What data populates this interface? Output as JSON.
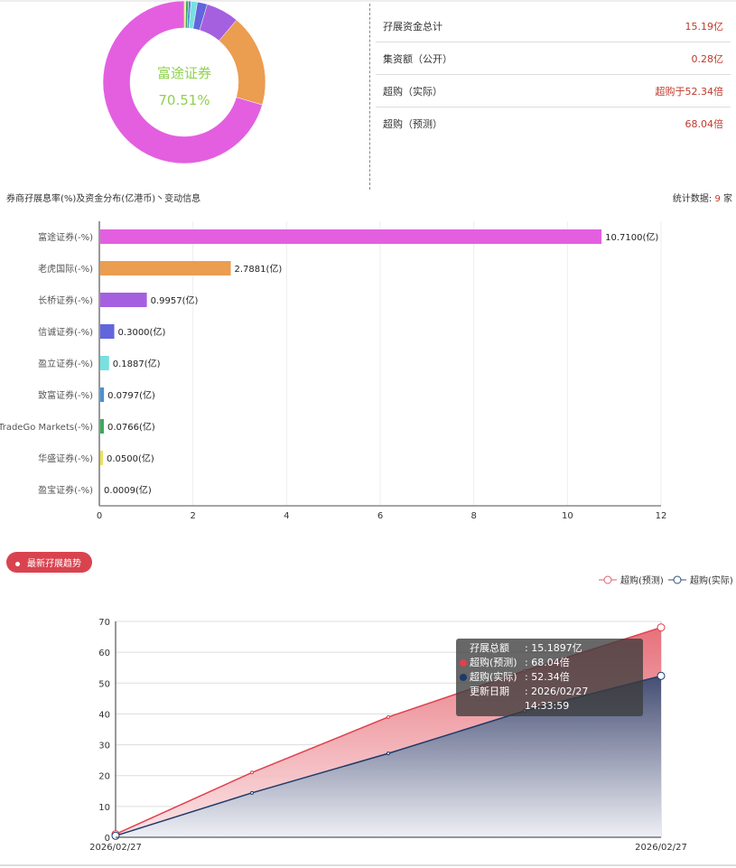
{
  "donut": {
    "center_name": "富途证券",
    "center_pct": "70.51%"
  },
  "stats": [
    {
      "label": "孖展资金总计",
      "value": "15.19亿"
    },
    {
      "label": "集资额（公开）",
      "value": "0.28亿"
    },
    {
      "label": "超购（实际）",
      "value": "超购于52.34倍"
    },
    {
      "label": "超购（预测）",
      "value": "68.04倍"
    }
  ],
  "subtitle": "券商孖展息率(%)及资金分布(亿港币)丶变动信息",
  "count": {
    "label": "统计数据: ",
    "value": "9",
    "unit": " 家"
  },
  "trend_badge": "最新孖展趋势",
  "tooltip": {
    "rows": [
      {
        "k": "孖展总额",
        "v": ": 15.1897亿",
        "color": ""
      },
      {
        "k": "超购(预测)",
        "v": ": 68.04倍",
        "color": "#e0404f"
      },
      {
        "k": "超购(实际)",
        "v": ": 52.34倍",
        "color": "#1e3a6a"
      },
      {
        "k": "更新日期",
        "v": ": 2026/02/27 14:33:59",
        "color": ""
      }
    ]
  },
  "chart_data": [
    {
      "type": "pie",
      "variant": "donut",
      "categories": [
        "富途证券",
        "老虎国际",
        "长桥证券",
        "信诚证券",
        "盈立证券",
        "致富证券",
        "TradeGo Markets",
        "华盛证券",
        "盈宝证券"
      ],
      "values": [
        10.71,
        2.7881,
        0.9957,
        0.3,
        0.1887,
        0.0797,
        0.0766,
        0.05,
        0.0009
      ],
      "colors": [
        "#e35fe0",
        "#eb9d50",
        "#a560e0",
        "#6265dc",
        "#78e0e0",
        "#4a8fd6",
        "#3aaa5c",
        "#ece060",
        "#999999"
      ]
    },
    {
      "type": "bar",
      "orientation": "horizontal",
      "categories": [
        "富途证券(-%)",
        "老虎国际(-%)",
        "长桥证券(-%)",
        "信诚证券(-%)",
        "盈立证券(-%)",
        "致富证券(-%)",
        "TradeGo Markets(-%)",
        "华盛证券(-%)",
        "盈宝证券(-%)"
      ],
      "values": [
        10.71,
        2.7881,
        0.9957,
        0.3,
        0.1887,
        0.0797,
        0.0766,
        0.05,
        0.0009
      ],
      "data_labels": [
        "10.7100(亿)",
        "2.7881(亿)",
        "0.9957(亿)",
        "0.3000(亿)",
        "0.1887(亿)",
        "0.0797(亿)",
        "0.0766(亿)",
        "0.0500(亿)",
        "0.0009(亿)"
      ],
      "colors": [
        "#e35fe0",
        "#eb9d50",
        "#a560e0",
        "#6265dc",
        "#78e0e0",
        "#4a8fd6",
        "#3aaa5c",
        "#ece060",
        "#999999"
      ],
      "xlim": [
        0,
        12
      ],
      "xticks": [
        "0",
        "2",
        "4",
        "6",
        "8",
        "10",
        "12"
      ],
      "grid": true
    },
    {
      "type": "area",
      "x": [
        "2026/02/27",
        "",
        "",
        "",
        "2026/02/27"
      ],
      "xtick_labels": [
        "2026/02/27",
        "2026/02/27"
      ],
      "series": [
        {
          "name": "超购(预测)",
          "values": [
            1,
            21,
            39,
            54,
            68.04
          ],
          "color": "#e0404f"
        },
        {
          "name": "超购(实际)",
          "values": [
            0.5,
            14.4,
            27.2,
            41,
            52.34
          ],
          "color": "#1e3a6a"
        }
      ],
      "ylim": [
        0,
        70
      ],
      "yticks": [
        "0",
        "10",
        "20",
        "30",
        "40",
        "50",
        "60",
        "70"
      ],
      "legend": "top-right",
      "grid": true
    }
  ]
}
